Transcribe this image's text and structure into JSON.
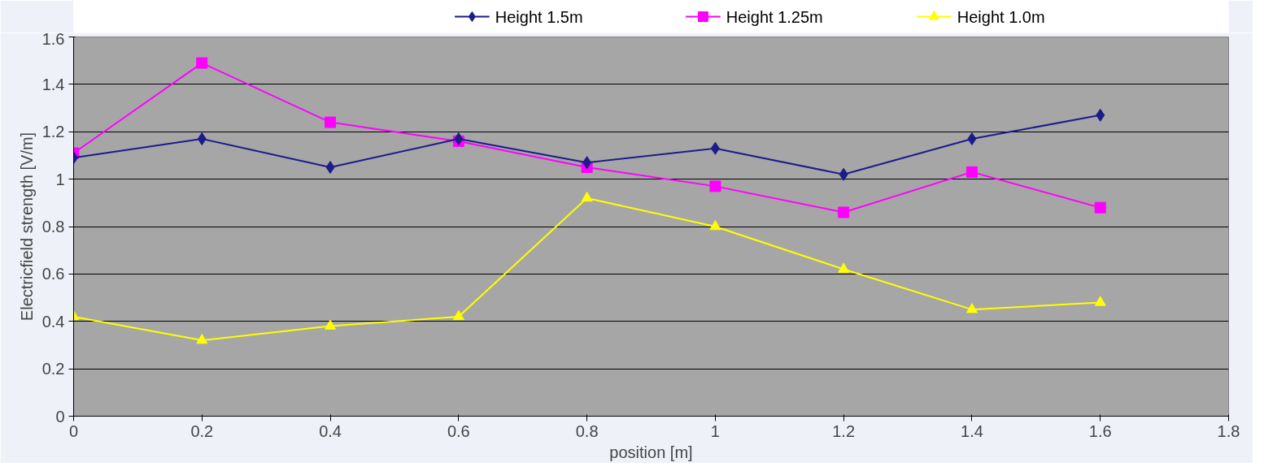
{
  "chart_data": {
    "type": "line",
    "xlabel": "position [m]",
    "ylabel": "Electricfield strength [V/m]",
    "x": [
      0,
      0.2,
      0.4,
      0.6,
      0.8,
      1,
      1.2,
      1.4,
      1.6
    ],
    "series": [
      {
        "name": "Height 1.5m",
        "color": "#1c1c8c",
        "marker": "diamond",
        "values": [
          1.09,
          1.17,
          1.05,
          1.17,
          1.07,
          1.13,
          1.02,
          1.17,
          1.27
        ]
      },
      {
        "name": "Height 1.25m",
        "color": "#ff00ff",
        "marker": "square",
        "values": [
          1.11,
          1.49,
          1.24,
          1.16,
          1.05,
          0.97,
          0.86,
          1.03,
          0.88
        ]
      },
      {
        "name": "Height 1.0m",
        "color": "#ffff00",
        "marker": "triangle",
        "values": [
          0.42,
          0.32,
          0.38,
          0.42,
          0.92,
          0.8,
          0.62,
          0.45,
          0.48
        ]
      }
    ],
    "xlim": [
      0,
      1.8
    ],
    "xticks": [
      0,
      0.2,
      0.4,
      0.6,
      0.8,
      1,
      1.2,
      1.4,
      1.6,
      1.8
    ],
    "ylim": [
      0,
      1.6
    ],
    "yticks": [
      0,
      0.2,
      0.4,
      0.6,
      0.8,
      1,
      1.2,
      1.4,
      1.6
    ],
    "grid": "y",
    "legend": "top"
  }
}
